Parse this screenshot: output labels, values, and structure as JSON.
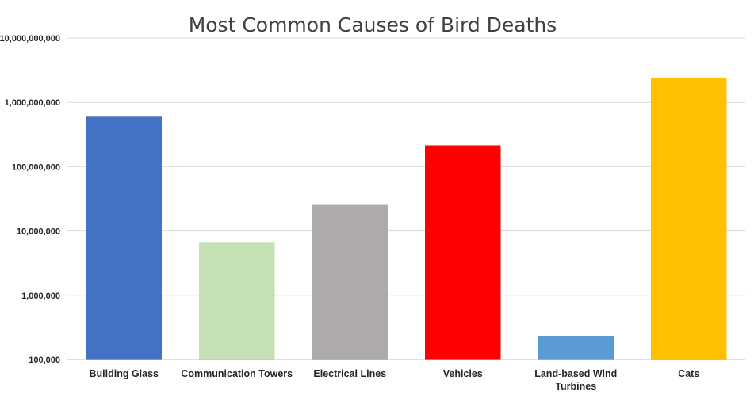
{
  "chart_data": {
    "type": "bar",
    "title": "Most Common Causes of Bird Deaths",
    "xlabel": "",
    "ylabel": "",
    "y_scale": "log",
    "ylim": [
      100000,
      10000000000
    ],
    "y_ticks": [
      100000,
      1000000,
      10000000,
      100000000,
      1000000000,
      10000000000
    ],
    "y_tick_labels": [
      "100,000",
      "1,000,000",
      "10,000,000",
      "100,000,000",
      "1,000,000,000",
      "10,000,000,000"
    ],
    "grid": true,
    "legend": "none",
    "categories": [
      "Building Glass",
      "Communication Towers",
      "Electrical Lines",
      "Vehicles",
      "Land-based Wind Turbines",
      "Cats"
    ],
    "category_lines": [
      [
        "Building Glass"
      ],
      [
        "Communication Towers"
      ],
      [
        "Electrical Lines"
      ],
      [
        "Vehicles"
      ],
      [
        "Land-based Wind",
        "Turbines"
      ],
      [
        "Cats"
      ]
    ],
    "values": [
      599000000,
      6600000,
      25500000,
      214500000,
      234000,
      2400000000
    ],
    "colors": [
      "#4472c4",
      "#c5e0b4",
      "#aeaaaa",
      "#ff0000",
      "#5b9bd5",
      "#ffc000"
    ]
  }
}
